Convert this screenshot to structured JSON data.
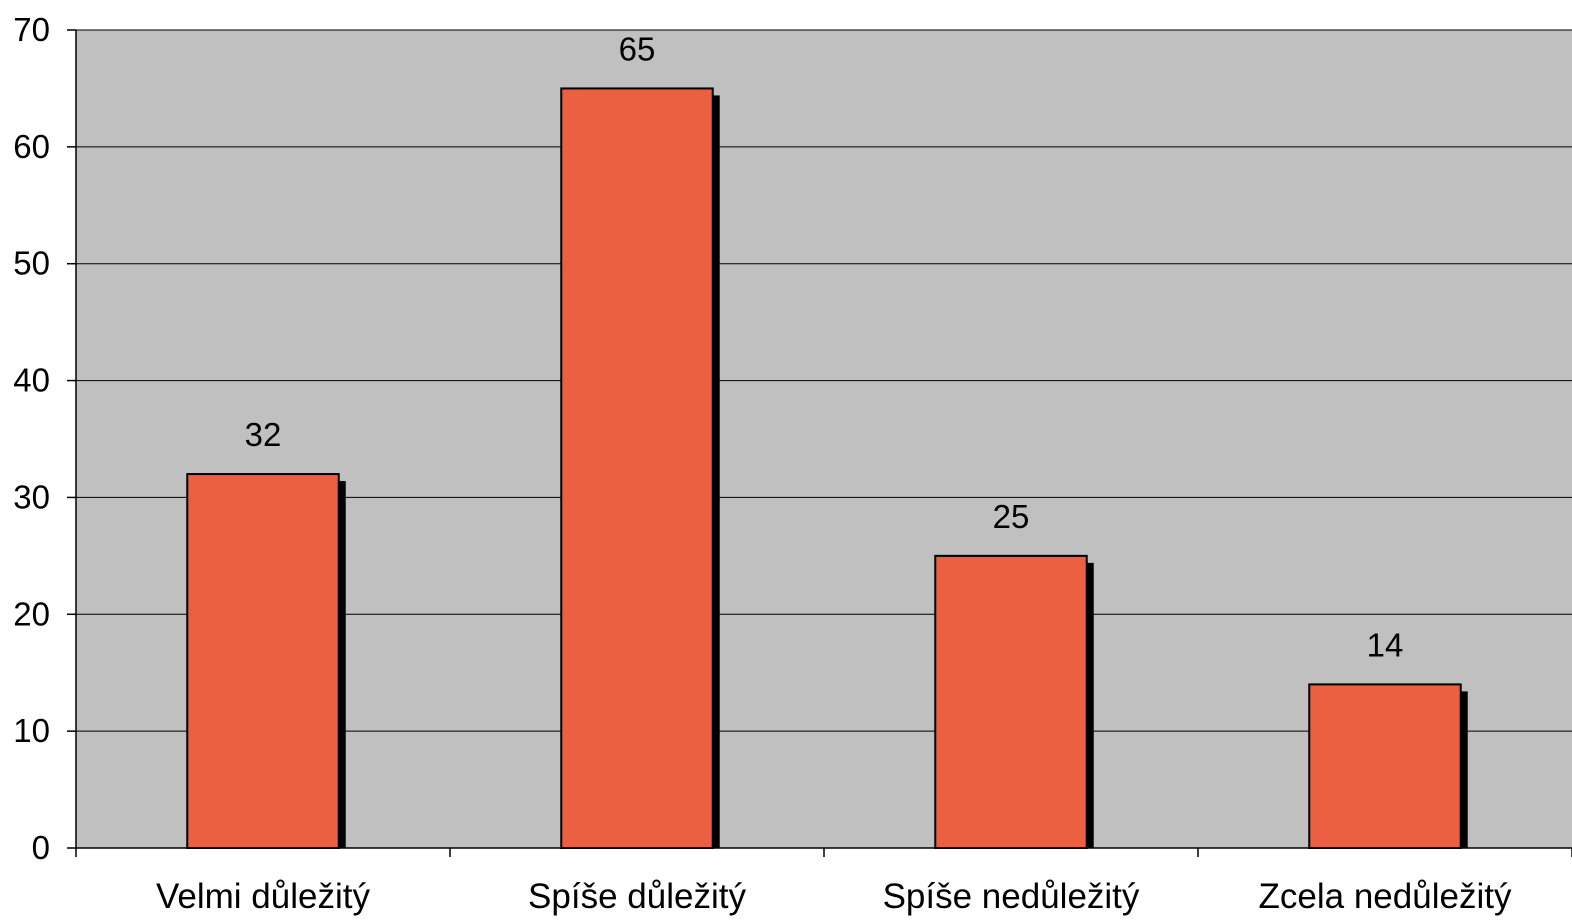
{
  "chart_data": {
    "type": "bar",
    "categories": [
      "Velmi důležitý",
      "Spíše důležitý",
      "Spíše nedůležitý",
      "Zcela nedůležitý"
    ],
    "values": [
      32,
      65,
      25,
      14
    ],
    "data_labels": [
      "32",
      "65",
      "25",
      "14"
    ],
    "ylim": [
      0,
      70
    ],
    "yticks": [
      0,
      10,
      20,
      30,
      40,
      50,
      60,
      70
    ],
    "ytick_labels": [
      "0",
      "10",
      "20",
      "30",
      "40",
      "50",
      "60",
      "70"
    ],
    "title": "",
    "xlabel": "",
    "ylabel": "",
    "grid": true,
    "legend": "none",
    "colors": {
      "bar": "#EB6040",
      "plot_background": "#C0C0C0",
      "bar_shadow": "#000000",
      "gridline": "#000000"
    }
  }
}
